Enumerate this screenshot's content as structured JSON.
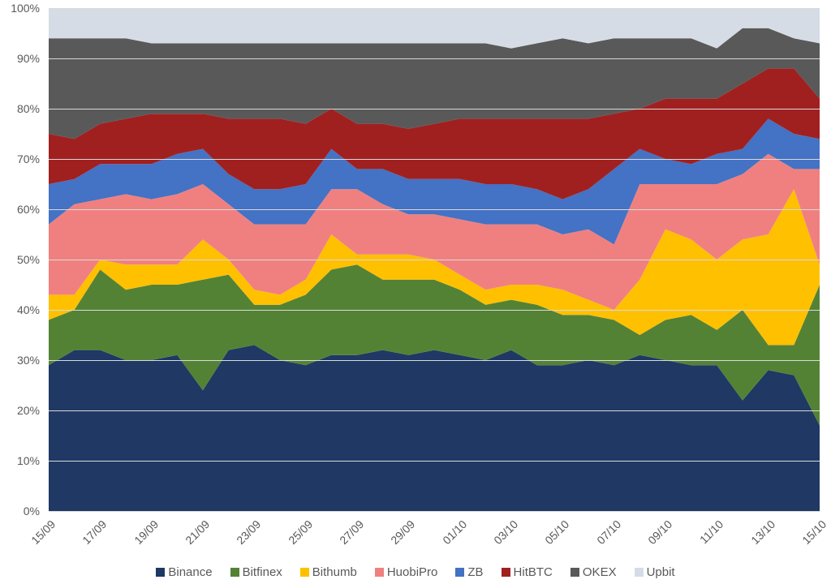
{
  "chart": {
    "type": "area-stacked-100",
    "background_color": "#ffffff",
    "grid_color": "#d9d9d9",
    "axis_font_color": "#595959",
    "axis_font_size": 14,
    "legend_font_size": 15,
    "ylim": [
      0,
      100
    ],
    "ytick_step": 10,
    "y_ticks": [
      "0%",
      "10%",
      "20%",
      "30%",
      "40%",
      "50%",
      "60%",
      "70%",
      "80%",
      "90%",
      "100%"
    ],
    "x_tick_labels": [
      "15/09",
      "17/09",
      "19/09",
      "21/09",
      "23/09",
      "25/09",
      "27/09",
      "29/09",
      "01/10",
      "03/10",
      "05/10",
      "07/10",
      "09/10",
      "11/10",
      "13/10",
      "15/10"
    ],
    "x_tick_indices": [
      0,
      2,
      4,
      6,
      8,
      10,
      12,
      14,
      16,
      18,
      20,
      22,
      24,
      26,
      28,
      30
    ],
    "dates": [
      "15/09",
      "16/09",
      "17/09",
      "18/09",
      "19/09",
      "20/09",
      "21/09",
      "22/09",
      "23/09",
      "24/09",
      "25/09",
      "26/09",
      "27/09",
      "28/09",
      "29/09",
      "30/09",
      "01/10",
      "02/10",
      "03/10",
      "04/10",
      "05/10",
      "06/10",
      "07/10",
      "08/10",
      "09/10",
      "10/10",
      "11/10",
      "12/10",
      "13/10",
      "14/10",
      "15/10"
    ],
    "series": [
      {
        "name": "Binance",
        "color": "#1f3864",
        "values": [
          29,
          32,
          32,
          30,
          30,
          31,
          24,
          32,
          33,
          30,
          29,
          31,
          31,
          32,
          31,
          32,
          31,
          30,
          32,
          29,
          29,
          30,
          29,
          31,
          30,
          29,
          29,
          22,
          28,
          27,
          17
        ]
      },
      {
        "name": "Bitfinex",
        "color": "#548235",
        "values": [
          9,
          8,
          16,
          14,
          15,
          14,
          22,
          15,
          8,
          11,
          14,
          17,
          18,
          14,
          15,
          14,
          13,
          11,
          10,
          12,
          10,
          9,
          9,
          4,
          8,
          10,
          7,
          18,
          5,
          6,
          28
        ]
      },
      {
        "name": "Bithumb",
        "color": "#ffc000",
        "values": [
          5,
          3,
          2,
          5,
          4,
          4,
          8,
          3,
          3,
          2,
          3,
          7,
          2,
          5,
          5,
          4,
          3,
          3,
          3,
          4,
          5,
          3,
          2,
          11,
          18,
          15,
          14,
          14,
          22,
          31,
          4
        ]
      },
      {
        "name": "HuobiPro",
        "color": "#f08080",
        "values": [
          14,
          18,
          12,
          14,
          13,
          14,
          11,
          11,
          13,
          14,
          11,
          9,
          13,
          10,
          8,
          9,
          11,
          13,
          12,
          12,
          11,
          14,
          13,
          19,
          9,
          11,
          15,
          13,
          16,
          4,
          19
        ]
      },
      {
        "name": "ZB",
        "color": "#4472c4",
        "values": [
          8,
          5,
          7,
          6,
          7,
          8,
          7,
          6,
          7,
          7,
          8,
          8,
          4,
          7,
          7,
          7,
          8,
          8,
          8,
          7,
          7,
          8,
          15,
          7,
          5,
          4,
          6,
          5,
          7,
          7,
          6
        ]
      },
      {
        "name": "HitBTC",
        "color": "#a02020",
        "values": [
          10,
          8,
          8,
          9,
          10,
          8,
          7,
          11,
          14,
          14,
          12,
          8,
          9,
          9,
          10,
          11,
          12,
          13,
          13,
          14,
          16,
          14,
          11,
          8,
          12,
          13,
          11,
          13,
          10,
          13,
          8
        ]
      },
      {
        "name": "OKEX",
        "color": "#595959",
        "values": [
          19,
          20,
          17,
          16,
          14,
          14,
          14,
          15,
          15,
          15,
          16,
          13,
          16,
          16,
          17,
          16,
          15,
          15,
          14,
          15,
          16,
          15,
          15,
          14,
          12,
          12,
          10,
          11,
          8,
          6,
          11
        ]
      },
      {
        "name": "Upbit",
        "color": "#d6dce5",
        "values": [
          6,
          6,
          6,
          6,
          7,
          7,
          7,
          7,
          7,
          7,
          7,
          7,
          7,
          7,
          7,
          7,
          7,
          7,
          8,
          7,
          6,
          7,
          6,
          6,
          6,
          6,
          8,
          4,
          4,
          6,
          7
        ]
      }
    ]
  }
}
